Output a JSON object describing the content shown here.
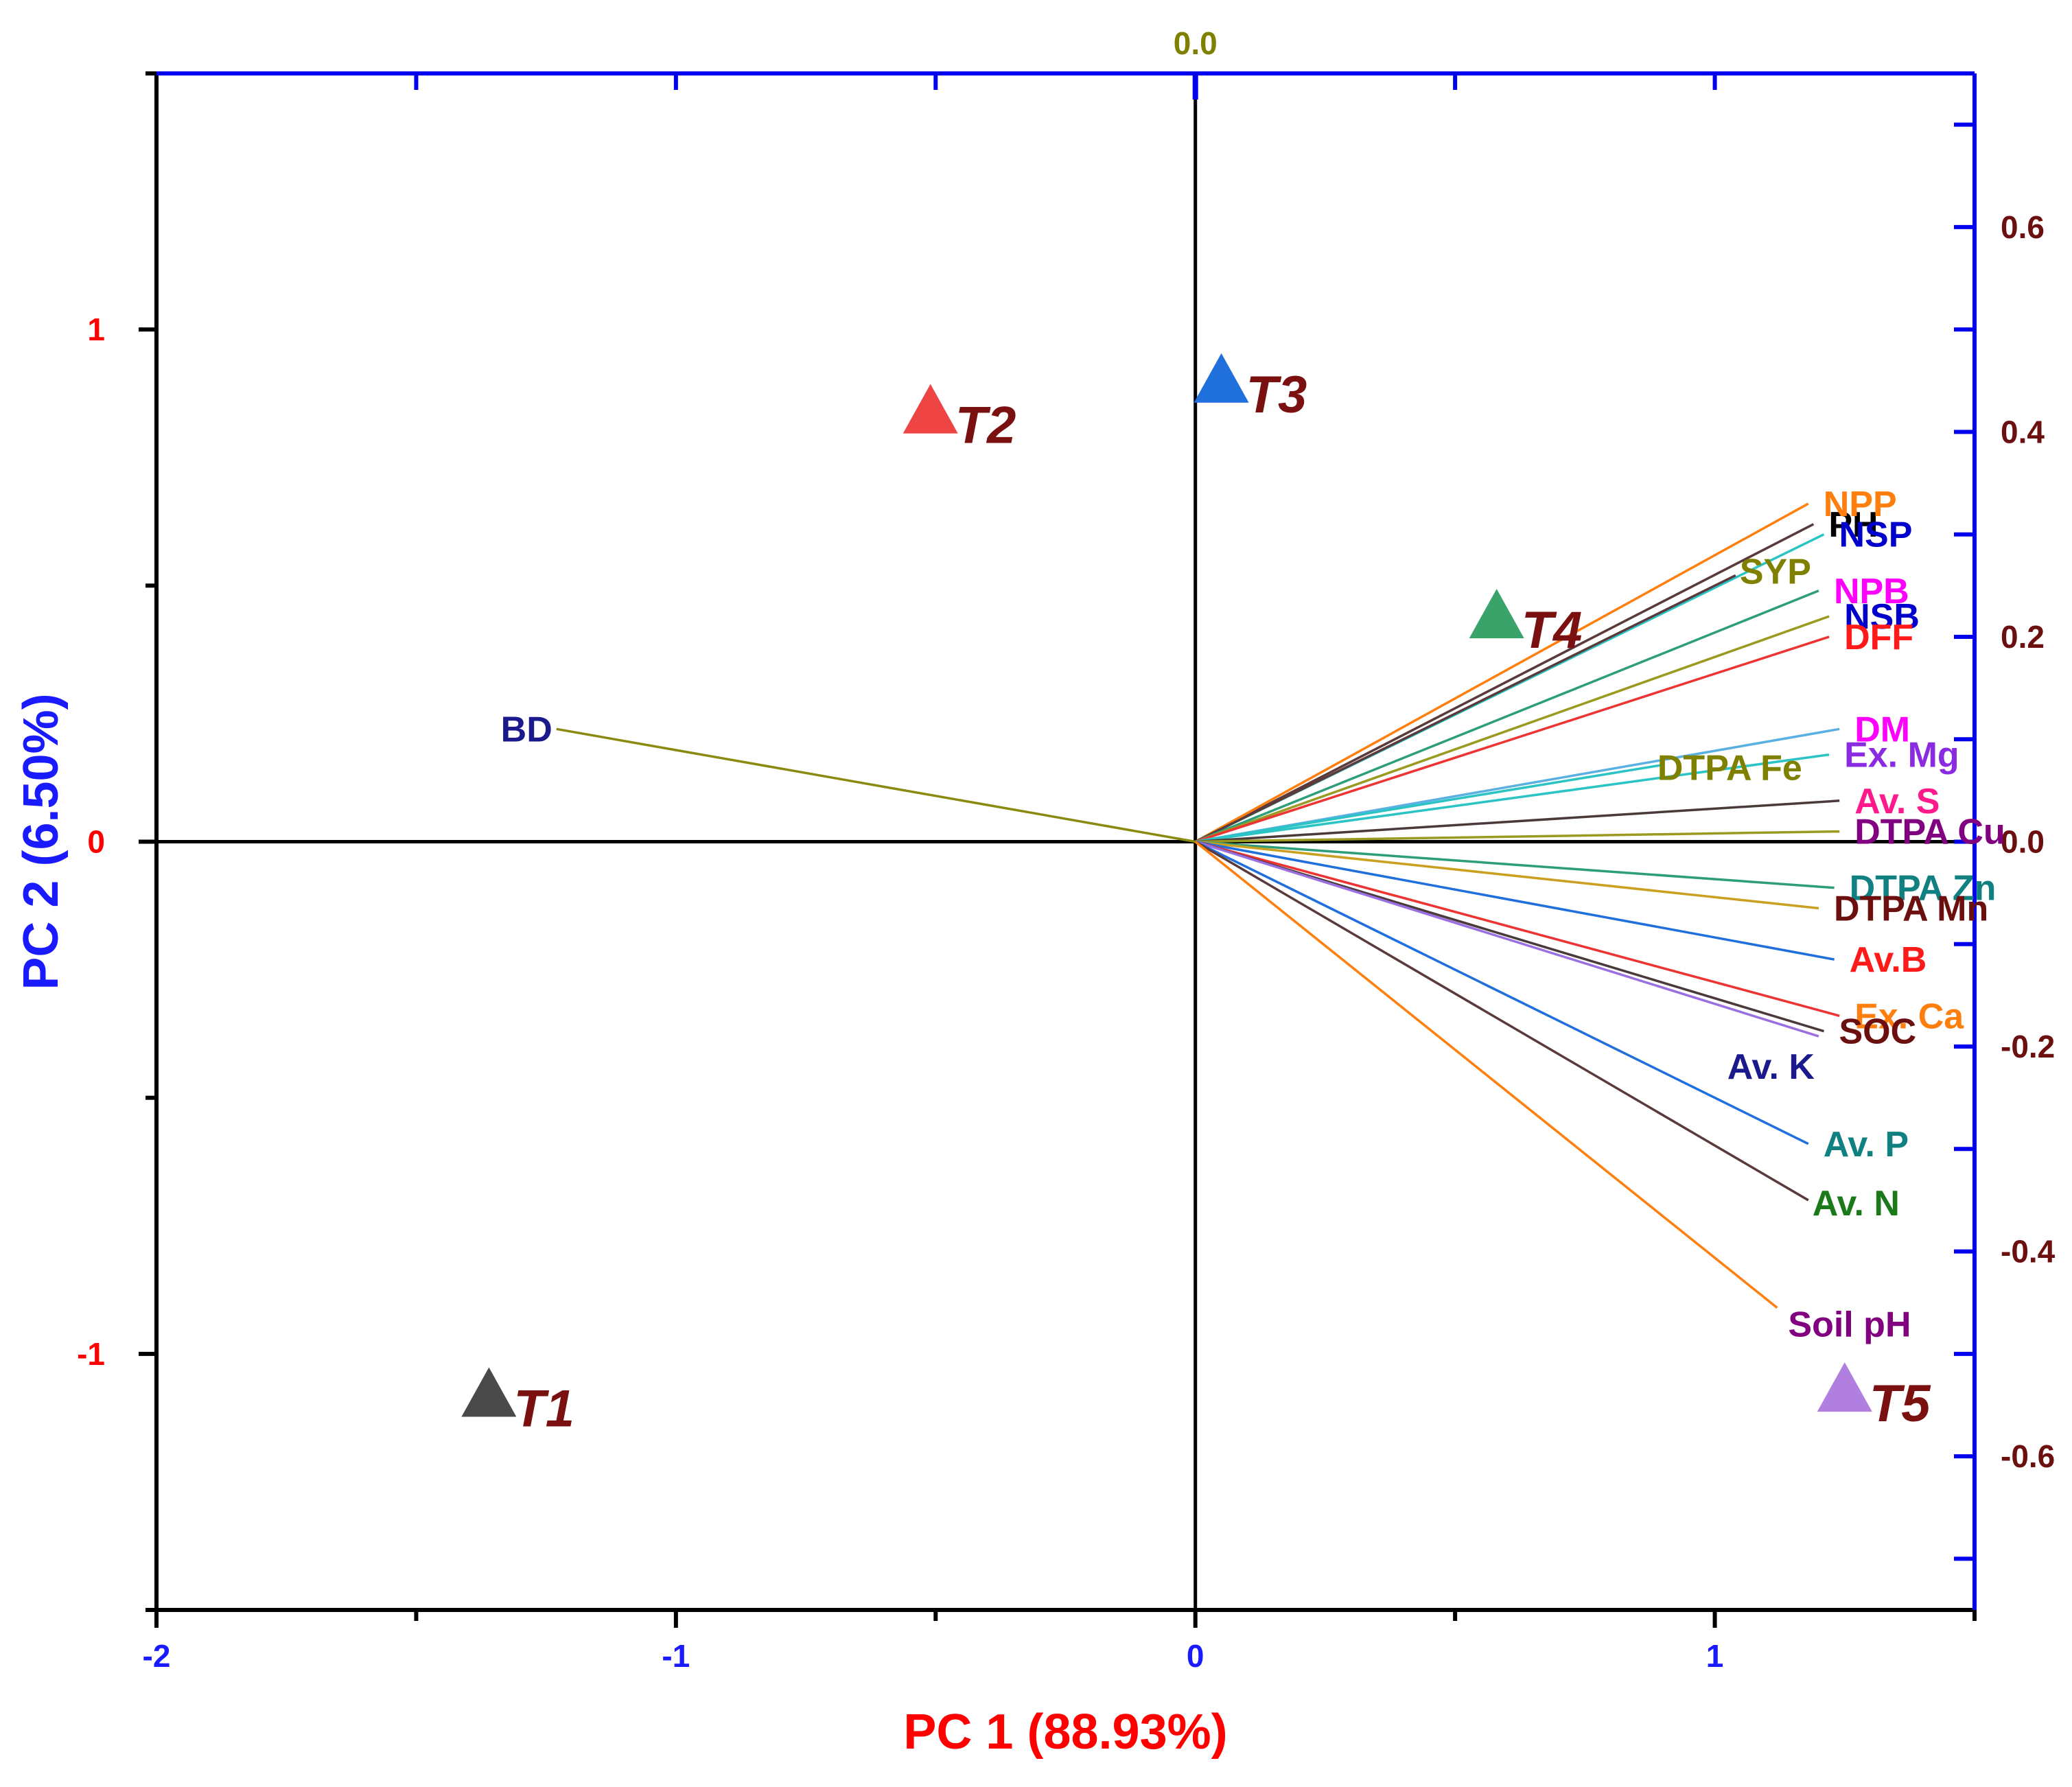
{
  "colors": {
    "bottom_axis_ticks": "#1a1aff",
    "left_axis_ticks": "#ff0000",
    "right_axis_line": "#0000ee",
    "right_axis_ticks": "#6b0f0f",
    "top_axis_ticks": "#808000",
    "x_title": "#ff0000",
    "y_title": "#1a1aff",
    "frame": "#000000"
  },
  "chart_data": {
    "type": "scatter",
    "subtype": "pca-biplot",
    "xlabel": "PC 1 (88.93%)",
    "ylabel": "PC 2 (6.50%)",
    "xlim": [
      -2,
      1.5
    ],
    "ylim": [
      -1.5,
      1.5
    ],
    "x_ticks": [
      {
        "value": -2,
        "label": "-2"
      },
      {
        "value": -1,
        "label": "-1"
      },
      {
        "value": 0,
        "label": "0"
      },
      {
        "value": 1,
        "label": "1"
      }
    ],
    "y_ticks": [
      {
        "value": -1,
        "label": "-1"
      },
      {
        "value": 0,
        "label": "0"
      },
      {
        "value": 1,
        "label": "1"
      }
    ],
    "loading_ylim": [
      -0.75,
      0.75
    ],
    "right_ticks": [
      {
        "value": 0.6,
        "label": "0.6"
      },
      {
        "value": 0.4,
        "label": "0.4"
      },
      {
        "value": 0.2,
        "label": "0.2"
      },
      {
        "value": 0.0,
        "label": "0.0"
      },
      {
        "value": -0.2,
        "label": "-0.2"
      },
      {
        "value": -0.4,
        "label": "-0.4"
      },
      {
        "value": -0.6,
        "label": "-0.6"
      }
    ],
    "top_ticks": [
      {
        "value": 0.0,
        "label": "0.0"
      }
    ],
    "grid": false,
    "observations": [
      {
        "label": "T1",
        "x": -1.36,
        "y": -1.08,
        "color": "#4a4a4a"
      },
      {
        "label": "T2",
        "x": -0.51,
        "y": 0.84,
        "color": "#ee4444"
      },
      {
        "label": "T3",
        "x": 0.05,
        "y": 0.9,
        "color": "#1f6fdd"
      },
      {
        "label": "T4",
        "x": 0.58,
        "y": 0.44,
        "color": "#3aa36a"
      },
      {
        "label": "T5",
        "x": 1.25,
        "y": -1.07,
        "color": "#b07fe0"
      }
    ],
    "variables": [
      {
        "label": "PH",
        "x": 1.19,
        "y": 0.62,
        "color": "#000000",
        "line_color": "#5a3a3a"
      },
      {
        "label": "NPP",
        "x": 1.18,
        "y": 0.66,
        "color": "#ff7f0e",
        "line_color": "#ff7f0e"
      },
      {
        "label": "NSP",
        "x": 1.21,
        "y": 0.6,
        "color": "#0000cc",
        "line_color": "#2bc4c4"
      },
      {
        "label": "SYP",
        "x": 1.04,
        "y": 0.52,
        "color": "#808000",
        "line_color": "#5a3a3a"
      },
      {
        "label": "NPB",
        "x": 1.2,
        "y": 0.49,
        "color": "#ff00ff",
        "line_color": "#2e9e7a"
      },
      {
        "label": "NSB",
        "x": 1.22,
        "y": 0.44,
        "color": "#0000cc",
        "line_color": "#9a9a20"
      },
      {
        "label": "DFF",
        "x": 1.22,
        "y": 0.4,
        "color": "#ff1a1a",
        "line_color": "#ee3333"
      },
      {
        "label": "DM",
        "x": 1.24,
        "y": 0.22,
        "color": "#ff00ff",
        "line_color": "#5ab0e0"
      },
      {
        "label": "DTPA Fe",
        "x": 0.9,
        "y": 0.15,
        "color": "#808000",
        "line_color": "#2bc4c4"
      },
      {
        "label": "Ex. Mg",
        "x": 1.22,
        "y": 0.17,
        "color": "#8a2be2",
        "line_color": "#2bc4c4"
      },
      {
        "label": "Av. S",
        "x": 1.24,
        "y": 0.08,
        "color": "#ff1a8c",
        "line_color": "#4a3a3a"
      },
      {
        "label": "DTPA Cu",
        "x": 1.24,
        "y": 0.02,
        "color": "#800080",
        "line_color": "#9a9a20"
      },
      {
        "label": "DTPA Zn",
        "x": 1.23,
        "y": -0.09,
        "color": "#108080",
        "line_color": "#2e9e7a"
      },
      {
        "label": "DTPA Mn",
        "x": 1.2,
        "y": -0.13,
        "color": "#6b0f0f",
        "line_color": "#c9a020"
      },
      {
        "label": "Av.B",
        "x": 1.23,
        "y": -0.23,
        "color": "#ff1a1a",
        "line_color": "#1f6fdd"
      },
      {
        "label": "Ex. Ca",
        "x": 1.24,
        "y": -0.34,
        "color": "#ff7f0e",
        "line_color": "#ee3333"
      },
      {
        "label": "SOC",
        "x": 1.21,
        "y": -0.37,
        "color": "#6b0f0f",
        "line_color": "#4a3a3a"
      },
      {
        "label": "Av. K",
        "x": 1.2,
        "y": -0.38,
        "color": "#1a1a8c",
        "line_color": "#9a70e0"
      },
      {
        "label": "Av. P",
        "x": 1.18,
        "y": -0.59,
        "color": "#108080",
        "line_color": "#1f6fdd"
      },
      {
        "label": "Av. N",
        "x": 1.18,
        "y": -0.7,
        "color": "#1a7a1a",
        "line_color": "#5a3a3a"
      },
      {
        "label": "Soil pH",
        "x": 1.12,
        "y": -0.91,
        "color": "#800080",
        "line_color": "#ff7f0e"
      },
      {
        "label": "BD",
        "x": -1.23,
        "y": 0.22,
        "color": "#1a1a8c",
        "line_color": "#8a8a10"
      }
    ]
  }
}
